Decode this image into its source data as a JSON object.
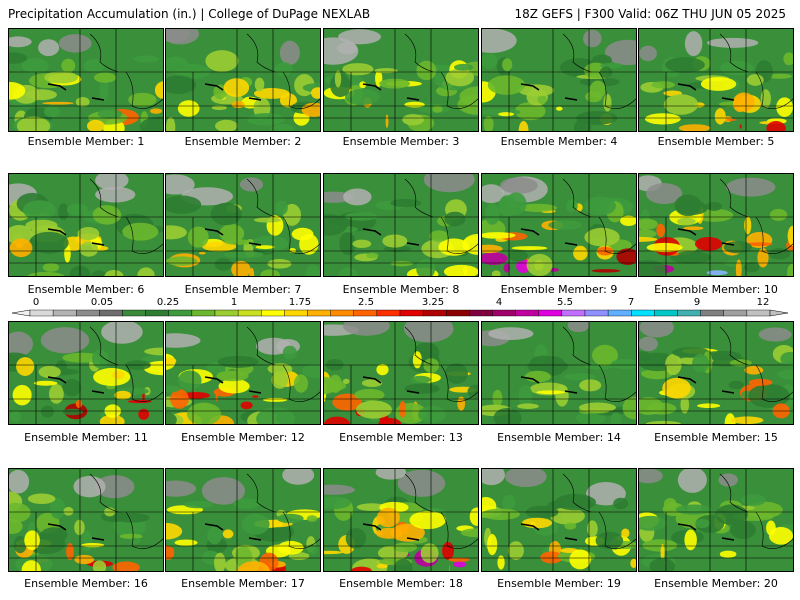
{
  "header": {
    "title_left": "Precipitation Accumulation (in.) | College of DuPage NEXLAB",
    "title_right": "18Z GEFS | F300 Valid: 06Z THU JUN 05 2025"
  },
  "colorbar": {
    "labels": [
      "0",
      "0.05",
      "0.25",
      "1",
      "1.75",
      "2.5",
      "3.25",
      "4",
      "5.5",
      "7",
      "9",
      "12"
    ],
    "colors": [
      "#d9d9d9",
      "#b3b3b3",
      "#8c8c8c",
      "#6e6e6e",
      "#3a8a3a",
      "#2e7d32",
      "#3d9b3d",
      "#6bb82e",
      "#9acd32",
      "#c8e020",
      "#ffff00",
      "#ffd700",
      "#ffb000",
      "#ff8c00",
      "#ff6400",
      "#ff3000",
      "#e00000",
      "#b00000",
      "#8b0000",
      "#800040",
      "#a0006a",
      "#c000a0",
      "#e000e0",
      "#c070ff",
      "#9090ff",
      "#60b0ff",
      "#00e0ff",
      "#00c8c8",
      "#40b0b0",
      "#808080",
      "#a0a0a0",
      "#c0c0c0"
    ]
  },
  "members": [
    {
      "label": "Ensemble Member: 1",
      "intensity": 0.55,
      "seed": 11
    },
    {
      "label": "Ensemble Member: 2",
      "intensity": 0.45,
      "seed": 23
    },
    {
      "label": "Ensemble Member: 3",
      "intensity": 0.6,
      "seed": 37
    },
    {
      "label": "Ensemble Member: 4",
      "intensity": 0.3,
      "seed": 41
    },
    {
      "label": "Ensemble Member: 5",
      "intensity": 0.6,
      "seed": 53
    },
    {
      "label": "Ensemble Member: 6",
      "intensity": 0.5,
      "seed": 67
    },
    {
      "label": "Ensemble Member: 7",
      "intensity": 0.45,
      "seed": 71
    },
    {
      "label": "Ensemble Member: 8",
      "intensity": 0.35,
      "seed": 83
    },
    {
      "label": "Ensemble Member: 9",
      "intensity": 0.85,
      "seed": 97
    },
    {
      "label": "Ensemble Member: 10",
      "intensity": 0.85,
      "seed": 101
    },
    {
      "label": "Ensemble Member: 11",
      "intensity": 0.7,
      "seed": 113
    },
    {
      "label": "Ensemble Member: 12",
      "intensity": 0.8,
      "seed": 127
    },
    {
      "label": "Ensemble Member: 13",
      "intensity": 0.6,
      "seed": 131
    },
    {
      "label": "Ensemble Member: 14",
      "intensity": 0.3,
      "seed": 149
    },
    {
      "label": "Ensemble Member: 15",
      "intensity": 0.75,
      "seed": 151
    },
    {
      "label": "Ensemble Member: 16",
      "intensity": 0.55,
      "seed": 163
    },
    {
      "label": "Ensemble Member: 17",
      "intensity": 0.55,
      "seed": 173
    },
    {
      "label": "Ensemble Member: 18",
      "intensity": 0.85,
      "seed": 181
    },
    {
      "label": "Ensemble Member: 19",
      "intensity": 0.55,
      "seed": 191
    },
    {
      "label": "Ensemble Member: 20",
      "intensity": 0.4,
      "seed": 199
    }
  ]
}
